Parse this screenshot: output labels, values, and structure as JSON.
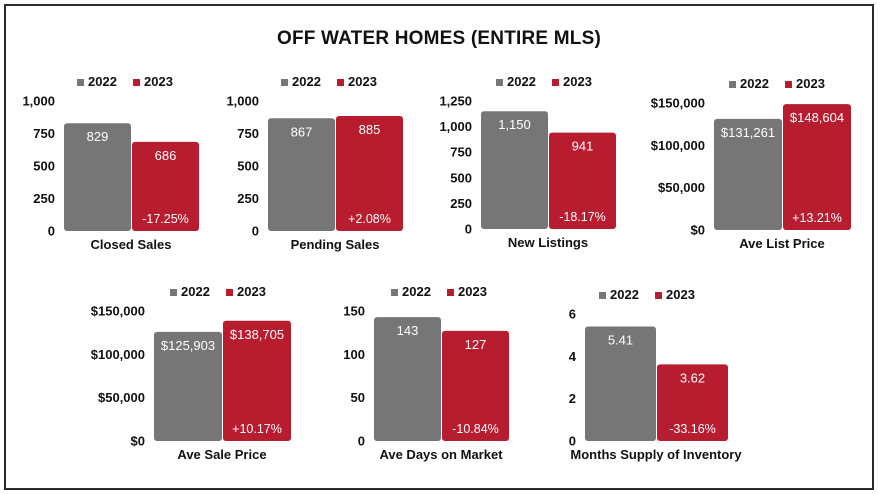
{
  "page": {
    "title": "OFF WATER HOMES (ENTIRE MLS)"
  },
  "colors": {
    "y2022": "#767676",
    "y2023": "#b81c2f",
    "label_on_bar": "#ffffff",
    "axis_text": "#111111"
  },
  "chart_data": [
    {
      "type": "bar",
      "xlabel": "Closed Sales",
      "series": [
        {
          "name": "2022",
          "values": [
            829
          ]
        },
        {
          "name": "2023",
          "values": [
            686
          ]
        }
      ],
      "data_labels": [
        "829",
        "686"
      ],
      "change": "-17.25%",
      "ylim": [
        0,
        1000
      ],
      "yticks": [
        0,
        250,
        500,
        750,
        1000
      ],
      "ytick_labels": [
        "0",
        "250",
        "500",
        "750",
        "1,000"
      ],
      "legend": "top"
    },
    {
      "type": "bar",
      "xlabel": "Pending Sales",
      "series": [
        {
          "name": "2022",
          "values": [
            867
          ]
        },
        {
          "name": "2023",
          "values": [
            885
          ]
        }
      ],
      "data_labels": [
        "867",
        "885"
      ],
      "change": "+2.08%",
      "ylim": [
        0,
        1000
      ],
      "yticks": [
        0,
        250,
        500,
        750,
        1000
      ],
      "ytick_labels": [
        "0",
        "250",
        "500",
        "750",
        "1,000"
      ],
      "legend": "top"
    },
    {
      "type": "bar",
      "xlabel": "New Listings",
      "series": [
        {
          "name": "2022",
          "values": [
            1150
          ]
        },
        {
          "name": "2023",
          "values": [
            941
          ]
        }
      ],
      "data_labels": [
        "1,150",
        "941"
      ],
      "change": "-18.17%",
      "ylim": [
        0,
        1250
      ],
      "yticks": [
        0,
        250,
        500,
        750,
        1000,
        1250
      ],
      "ytick_labels": [
        "0",
        "250",
        "500",
        "750",
        "1,000",
        "1,250"
      ],
      "legend": "top"
    },
    {
      "type": "bar",
      "xlabel": "Ave List Price",
      "series": [
        {
          "name": "2022",
          "values": [
            131261
          ]
        },
        {
          "name": "2023",
          "values": [
            148604
          ]
        }
      ],
      "data_labels": [
        "$131,261",
        "$148,604"
      ],
      "change": "+13.21%",
      "ylim": [
        0,
        150000
      ],
      "yticks": [
        0,
        50000,
        100000,
        150000
      ],
      "ytick_labels": [
        "$0",
        "$50,000",
        "$100,000",
        "$150,000"
      ],
      "legend": "top"
    },
    {
      "type": "bar",
      "xlabel": "Ave Sale Price",
      "series": [
        {
          "name": "2022",
          "values": [
            125903
          ]
        },
        {
          "name": "2023",
          "values": [
            138705
          ]
        }
      ],
      "data_labels": [
        "$125,903",
        "$138,705"
      ],
      "change": "+10.17%",
      "ylim": [
        0,
        150000
      ],
      "yticks": [
        0,
        50000,
        100000,
        150000
      ],
      "ytick_labels": [
        "$0",
        "$50,000",
        "$100,000",
        "$150,000"
      ],
      "legend": "top"
    },
    {
      "type": "bar",
      "xlabel": "Ave Days on Market",
      "series": [
        {
          "name": "2022",
          "values": [
            143
          ]
        },
        {
          "name": "2023",
          "values": [
            127
          ]
        }
      ],
      "data_labels": [
        "143",
        "127"
      ],
      "change": "-10.84%",
      "ylim": [
        0,
        150
      ],
      "yticks": [
        0,
        50,
        100,
        150
      ],
      "ytick_labels": [
        "0",
        "50",
        "100",
        "150"
      ],
      "legend": "top"
    },
    {
      "type": "bar",
      "xlabel": "Months Supply of Inventory",
      "series": [
        {
          "name": "2022",
          "values": [
            5.41
          ]
        },
        {
          "name": "2023",
          "values": [
            3.62
          ]
        }
      ],
      "data_labels": [
        "5.41",
        "3.62"
      ],
      "change": "-33.16%",
      "ylim": [
        0,
        6
      ],
      "yticks": [
        0,
        2,
        4,
        6
      ],
      "ytick_labels": [
        "0",
        "2",
        "4",
        "6"
      ],
      "legend": "top"
    }
  ]
}
